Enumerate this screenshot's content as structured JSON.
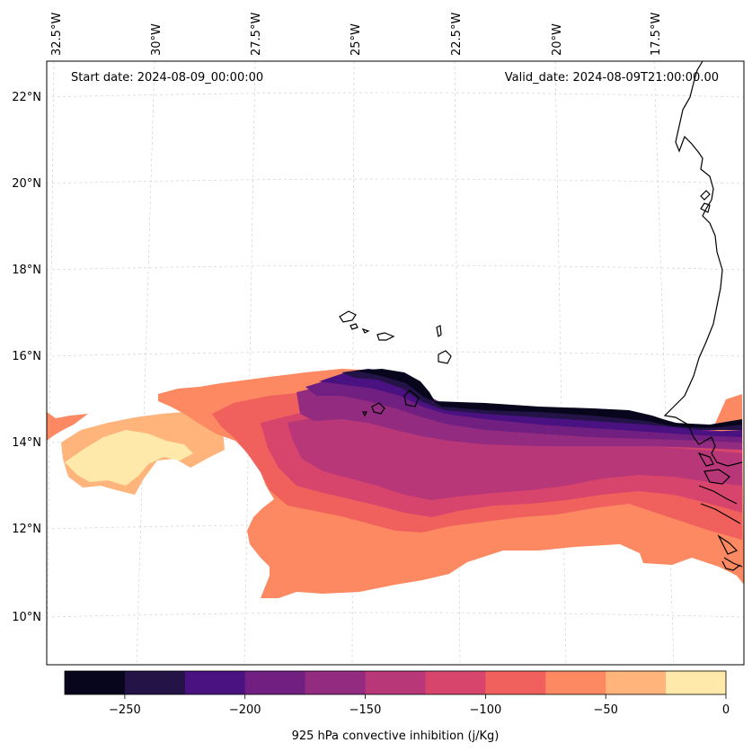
{
  "map": {
    "start_date_label": "Start date: 2024-08-09_00:00:00",
    "valid_date_label": "Valid_date: 2024-08-09T21:00:00.00",
    "lon_labels": [
      "32.5°W",
      "30°W",
      "27.5°W",
      "25°W",
      "22.5°W",
      "20°W",
      "17.5°W"
    ],
    "lat_labels": [
      "22°N",
      "20°N",
      "18°N",
      "16°N",
      "14°N",
      "12°N",
      "10°N"
    ]
  },
  "colorbar": {
    "label": "925 hPa convective inhibition (j/Kg)",
    "ticks": [
      "−250",
      "−200",
      "−150",
      "−100",
      "−50",
      "0"
    ],
    "levels": [
      -275,
      -250,
      -225,
      -200,
      -175,
      -150,
      -125,
      -100,
      -75,
      -50,
      -25,
      0
    ],
    "colors": [
      "#07061c",
      "#231347",
      "#4a1280",
      "#711f81",
      "#932b80",
      "#b73779",
      "#d8456c",
      "#f0605d",
      "#fc8961",
      "#feb47b",
      "#fee9aa"
    ]
  },
  "colors": {
    "c1": "#fee9aa",
    "c2": "#feb47b",
    "c3": "#fc8961",
    "c4": "#f0605d",
    "c5": "#d8456c",
    "c6": "#b73779",
    "c7": "#932b80",
    "c8": "#711f81",
    "c9": "#4a1280",
    "c10": "#231347",
    "c11": "#07061c"
  }
}
